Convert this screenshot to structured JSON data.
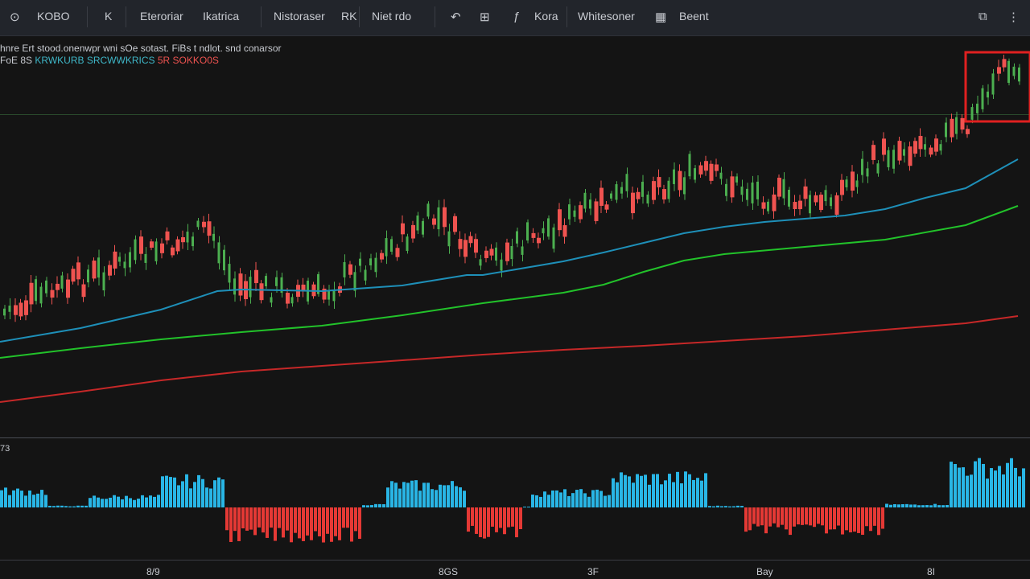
{
  "toolbar": {
    "items": [
      {
        "label": "KOBO",
        "icon": "symbol-search-icon"
      },
      {
        "label": "K"
      },
      {
        "label": "Eteroriar"
      },
      {
        "label": "Ikatrica"
      },
      {
        "label": "Nistoraser"
      },
      {
        "label": "RK"
      },
      {
        "label": "Niet rdo"
      },
      {
        "label": "Kora"
      },
      {
        "label": "Whitesoner"
      },
      {
        "label": "Beent"
      }
    ],
    "icons": [
      "undo-icon",
      "compare-icon",
      "snapshot-icon"
    ]
  },
  "legend": {
    "line1": "hnre Ert stood.onenwpr wni sOe sotast. FiBs t ndlot. snd conarsor",
    "line2_a": "FoE 8S",
    "line2_b": "KRWKURB SRCWWKRICS",
    "line2_c": "5R SOKKO0S"
  },
  "oscillator": {
    "label": "73"
  },
  "time_axis": [
    "8/9",
    "8GS",
    "3F",
    "Bay",
    "8I"
  ],
  "colors": {
    "up": "#4caf50",
    "down": "#ef5350",
    "ma_fast": "#1e8fb8",
    "ma_mid": "#22c22a",
    "ma_slow": "#c62828",
    "hist_pos": "#29b6e6",
    "hist_neg": "#e53935",
    "highlight": "#e02020"
  }
}
